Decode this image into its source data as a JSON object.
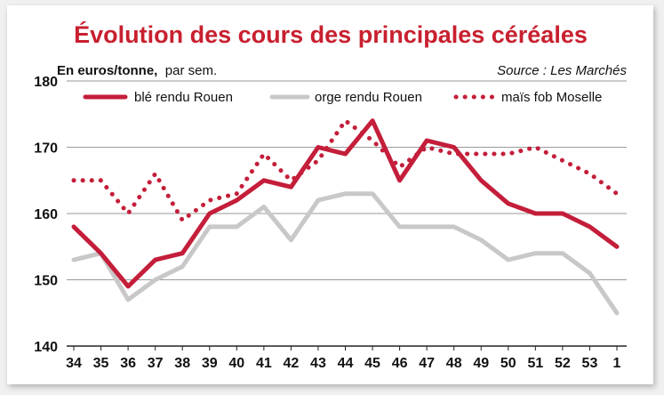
{
  "chart_data": {
    "type": "line",
    "title": "Évolution des cours des principales céréales",
    "unit_label": "En euros/tonne,",
    "unit_suffix": "par sem.",
    "source": "Source : Les Marchés",
    "x": [
      "34",
      "35",
      "36",
      "37",
      "38",
      "39",
      "40",
      "41",
      "42",
      "43",
      "44",
      "45",
      "46",
      "47",
      "48",
      "49",
      "50",
      "51",
      "52",
      "53",
      "1"
    ],
    "ylim": [
      140,
      180
    ],
    "yticks": [
      140,
      150,
      160,
      170,
      180
    ],
    "grid": true,
    "legend_position": "top",
    "series": [
      {
        "name": "blé rendu Rouen",
        "color": "#c41e3a",
        "style": "solid",
        "values": [
          158,
          154,
          149,
          153,
          154,
          160,
          162,
          165,
          164,
          170,
          169,
          174,
          165,
          171,
          170,
          165,
          161.5,
          160,
          160,
          158,
          155
        ]
      },
      {
        "name": "orge rendu Rouen",
        "color": "#c8c8c8",
        "style": "solid",
        "values": [
          153,
          154,
          147,
          150,
          152,
          158,
          158,
          161,
          156,
          162,
          163,
          163,
          158,
          158,
          158,
          156,
          153,
          154,
          154,
          151,
          145
        ]
      },
      {
        "name": "maïs fob Moselle",
        "color": "#c41e3a",
        "style": "dotted",
        "values": [
          165,
          165,
          160,
          166,
          159,
          162,
          163,
          169,
          165,
          168,
          174,
          171,
          167,
          170,
          169,
          169,
          169,
          170,
          168,
          166,
          163
        ]
      }
    ]
  }
}
